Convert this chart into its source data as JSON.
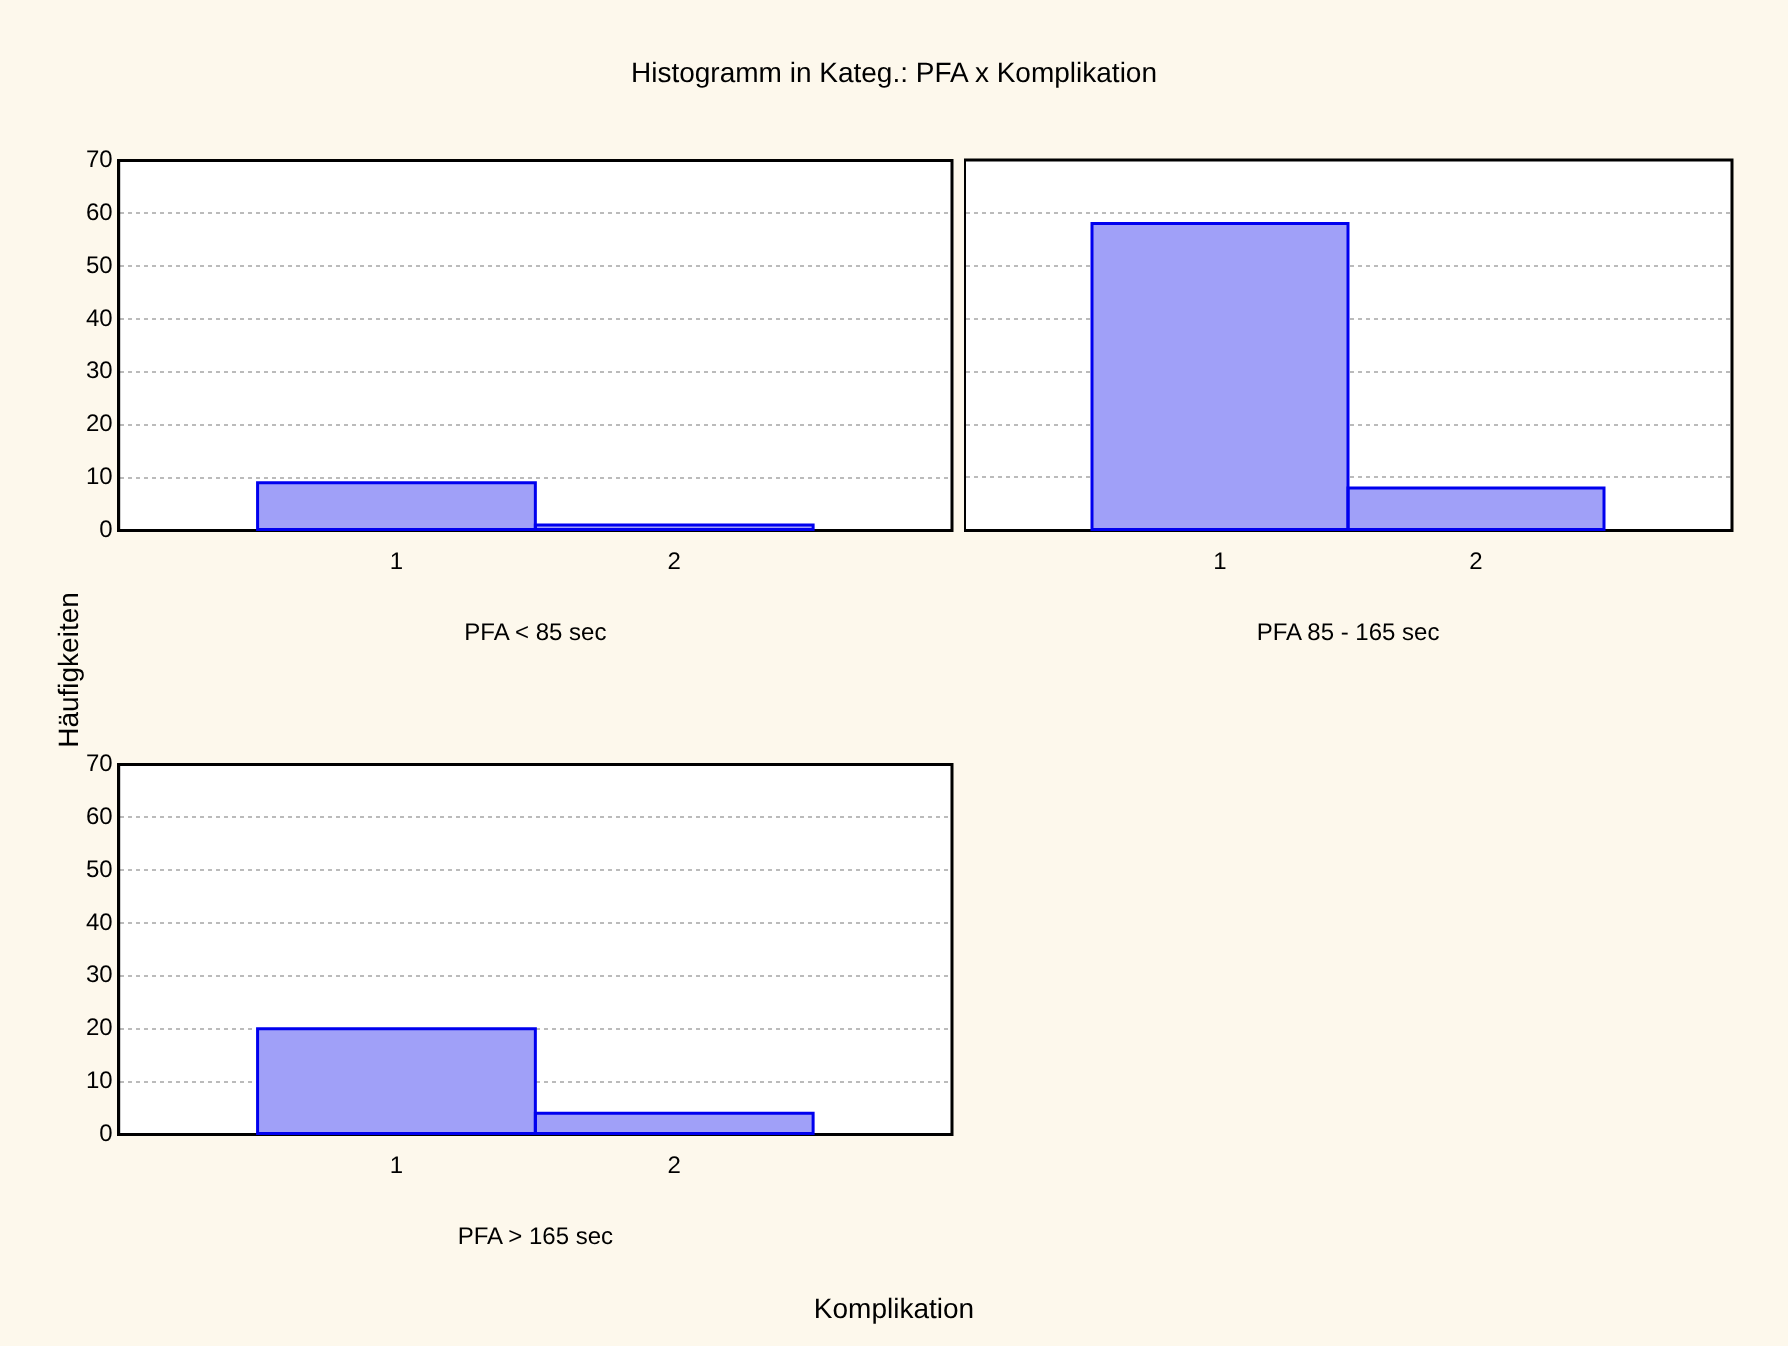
{
  "chart_data": [
    {
      "type": "bar",
      "title": "Histogramm in Kateg.: PFA x Komplikation",
      "ylabel": "Häufigkeiten",
      "annotations": [
        "Komplikation"
      ],
      "xlabel": "PFA < 85 sec",
      "categories": [
        "1",
        "2"
      ],
      "values": [
        9,
        1
      ],
      "color": "#a0a0f8",
      "ylim": [
        0,
        70
      ],
      "yticks": [
        0,
        10,
        20,
        30,
        40,
        50,
        60,
        70
      ],
      "grid": "y"
    },
    {
      "type": "bar",
      "xlabel": "PFA 85 - 165 sec",
      "categories": [
        "1",
        "2"
      ],
      "values": [
        58,
        8
      ],
      "color": "#a0a0f8",
      "ylim": [
        0,
        70
      ],
      "yticks": [
        0,
        10,
        20,
        30,
        40,
        50,
        60,
        70
      ],
      "grid": "y",
      "tick_labels": "x"
    },
    {
      "type": "bar",
      "xlabel": "PFA > 165 sec",
      "categories": [
        "1",
        "2"
      ],
      "values": [
        20,
        4
      ],
      "color": "#a0a0f8",
      "ylim": [
        0,
        70
      ],
      "yticks": [
        0,
        10,
        20,
        30,
        40,
        50,
        60,
        70
      ],
      "grid": "y"
    }
  ]
}
